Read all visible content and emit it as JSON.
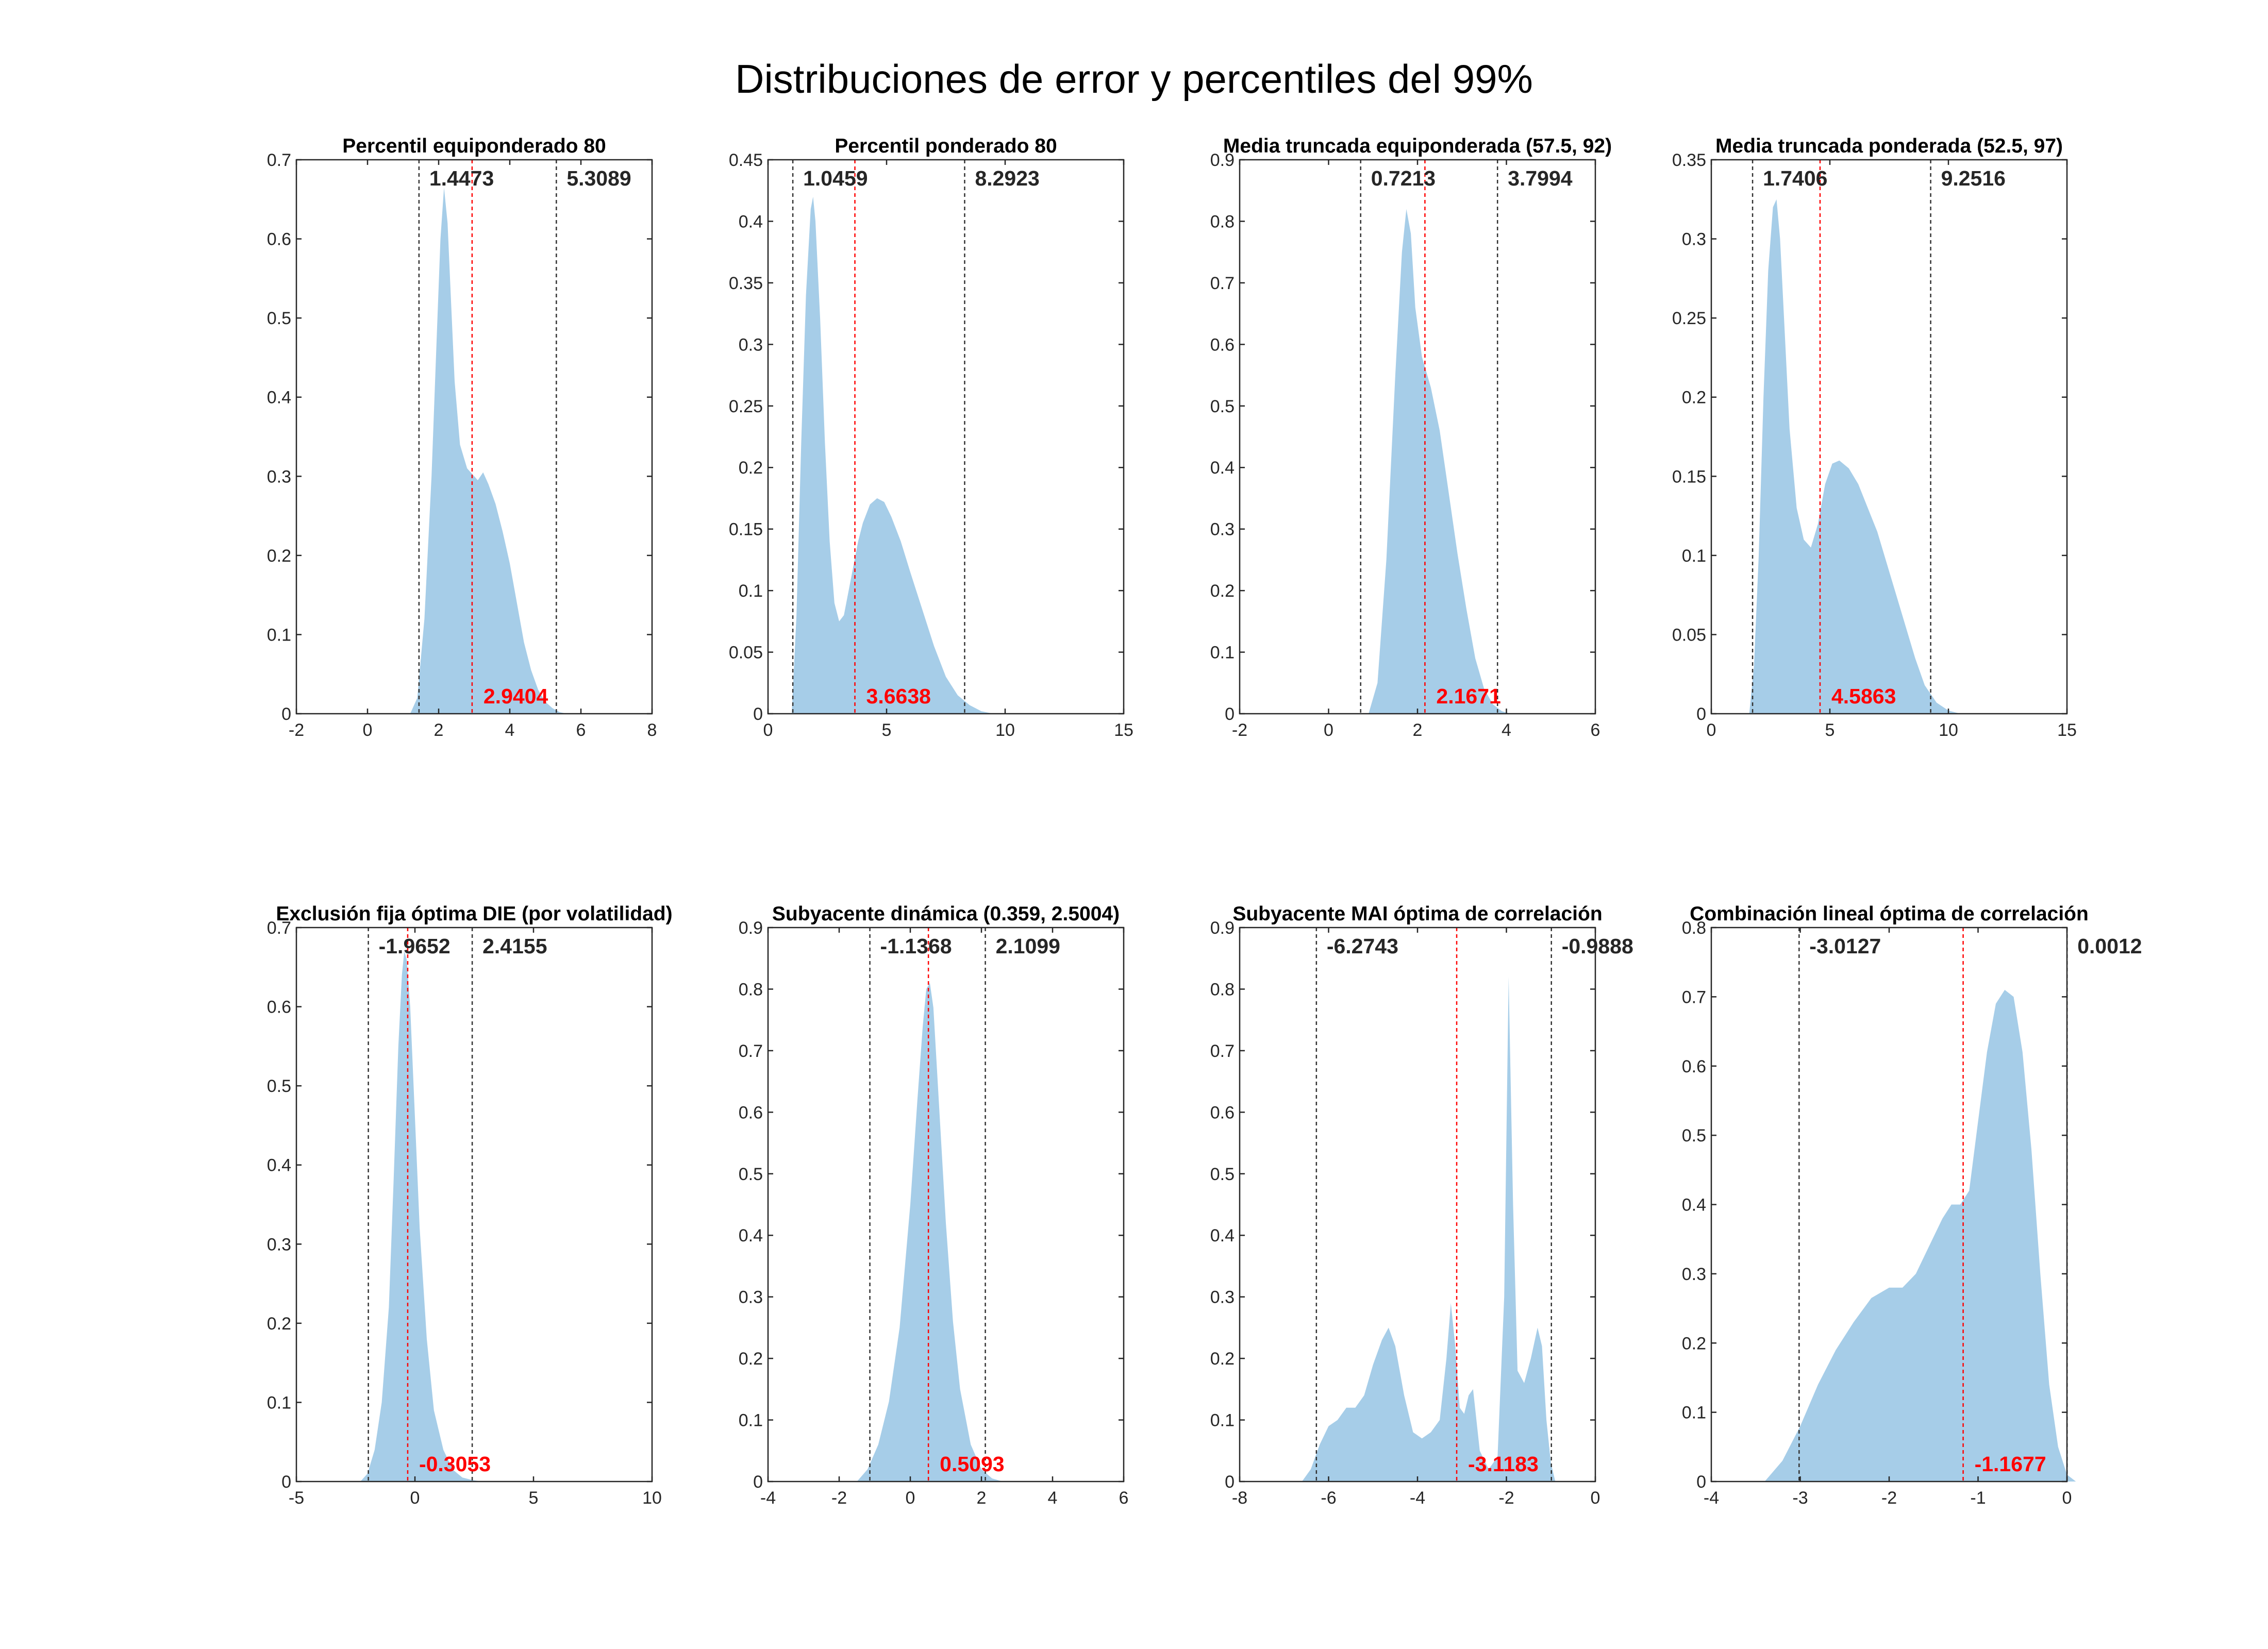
{
  "title": "Distribuciones de error y percentiles del 99%",
  "colors": {
    "fill": "#a6cde8",
    "median_line": "#ff0000",
    "bound_line": "#333333",
    "axis": "#262626"
  },
  "chart_data": [
    {
      "type": "area",
      "title": "Percentil equiponderado 80",
      "xlim": [
        -2,
        8
      ],
      "ylim": [
        0,
        0.7
      ],
      "xticks": [
        "-2",
        "0",
        "2",
        "4",
        "6",
        "8"
      ],
      "yticks": [
        "0",
        "0.1",
        "0.2",
        "0.3",
        "0.4",
        "0.5",
        "0.6",
        "0.7"
      ],
      "lower": 1.4473,
      "upper": 5.3089,
      "median": 2.9404,
      "lower_label": "1.4473",
      "upper_label": "5.3089",
      "median_label": "2.9404",
      "density": {
        "x": [
          1.2,
          1.4,
          1.6,
          1.8,
          1.95,
          2.05,
          2.15,
          2.25,
          2.35,
          2.45,
          2.6,
          2.8,
          3.0,
          3.1,
          3.25,
          3.4,
          3.6,
          3.8,
          4.0,
          4.2,
          4.4,
          4.6,
          4.8,
          5.0,
          5.2,
          5.4,
          5.6
        ],
        "y": [
          0.0,
          0.02,
          0.12,
          0.3,
          0.48,
          0.6,
          0.665,
          0.62,
          0.52,
          0.42,
          0.34,
          0.31,
          0.3,
          0.295,
          0.305,
          0.29,
          0.265,
          0.23,
          0.19,
          0.14,
          0.09,
          0.055,
          0.03,
          0.015,
          0.007,
          0.002,
          0.0
        ]
      }
    },
    {
      "type": "area",
      "title": "Percentil ponderado 80",
      "xlim": [
        0,
        15
      ],
      "ylim": [
        0,
        0.45
      ],
      "xticks": [
        "0",
        "5",
        "10",
        "15"
      ],
      "yticks": [
        "0",
        "0.05",
        "0.1",
        "0.15",
        "0.2",
        "0.25",
        "0.3",
        "0.35",
        "0.4",
        "0.45"
      ],
      "lower": 1.0459,
      "upper": 8.2923,
      "median": 3.6638,
      "lower_label": "1.0459",
      "upper_label": "8.2923",
      "median_label": "3.6638",
      "density": {
        "x": [
          1.0,
          1.2,
          1.4,
          1.6,
          1.8,
          1.9,
          2.0,
          2.2,
          2.4,
          2.6,
          2.8,
          3.0,
          3.2,
          3.5,
          3.8,
          4.0,
          4.3,
          4.6,
          4.9,
          5.2,
          5.6,
          6.0,
          6.5,
          7.0,
          7.5,
          8.0,
          8.5,
          9.0,
          9.5
        ],
        "y": [
          0.0,
          0.08,
          0.22,
          0.34,
          0.41,
          0.42,
          0.4,
          0.32,
          0.22,
          0.14,
          0.09,
          0.075,
          0.08,
          0.11,
          0.14,
          0.155,
          0.17,
          0.175,
          0.172,
          0.16,
          0.14,
          0.115,
          0.085,
          0.055,
          0.03,
          0.015,
          0.007,
          0.002,
          0.0
        ]
      }
    },
    {
      "type": "area",
      "title": "Media truncada equiponderada (57.5, 92)",
      "xlim": [
        -2,
        6
      ],
      "ylim": [
        0,
        0.9
      ],
      "xticks": [
        "-2",
        "0",
        "2",
        "4",
        "6"
      ],
      "yticks": [
        "0",
        "0.1",
        "0.2",
        "0.3",
        "0.4",
        "0.5",
        "0.6",
        "0.7",
        "0.8",
        "0.9"
      ],
      "lower": 0.7213,
      "upper": 3.7994,
      "median": 2.1671,
      "lower_label": "0.7213",
      "upper_label": "3.7994",
      "median_label": "2.1671",
      "density": {
        "x": [
          0.9,
          1.1,
          1.3,
          1.5,
          1.65,
          1.75,
          1.85,
          1.95,
          2.1,
          2.3,
          2.5,
          2.7,
          2.9,
          3.1,
          3.3,
          3.5,
          3.7,
          3.9,
          4.1
        ],
        "y": [
          0.0,
          0.05,
          0.25,
          0.55,
          0.75,
          0.82,
          0.78,
          0.66,
          0.58,
          0.53,
          0.46,
          0.36,
          0.26,
          0.17,
          0.09,
          0.04,
          0.015,
          0.004,
          0.0
        ]
      }
    },
    {
      "type": "area",
      "title": "Media truncada ponderada (52.5, 97)",
      "xlim": [
        0,
        15
      ],
      "ylim": [
        0,
        0.35
      ],
      "xticks": [
        "0",
        "5",
        "10",
        "15"
      ],
      "yticks": [
        "0",
        "0.05",
        "0.1",
        "0.15",
        "0.2",
        "0.25",
        "0.3",
        "0.35"
      ],
      "lower": 1.7406,
      "upper": 9.2516,
      "median": 4.5863,
      "lower_label": "1.7406",
      "upper_label": "9.2516",
      "median_label": "4.5863",
      "density": {
        "x": [
          1.6,
          1.8,
          2.0,
          2.2,
          2.4,
          2.6,
          2.75,
          2.9,
          3.1,
          3.3,
          3.6,
          3.9,
          4.2,
          4.5,
          4.8,
          5.1,
          5.4,
          5.8,
          6.2,
          6.6,
          7.0,
          7.4,
          7.8,
          8.2,
          8.6,
          9.0,
          9.5,
          10.0,
          10.5
        ],
        "y": [
          0.0,
          0.03,
          0.1,
          0.2,
          0.28,
          0.32,
          0.325,
          0.3,
          0.24,
          0.18,
          0.13,
          0.11,
          0.105,
          0.12,
          0.145,
          0.158,
          0.16,
          0.155,
          0.145,
          0.13,
          0.115,
          0.095,
          0.075,
          0.055,
          0.035,
          0.018,
          0.007,
          0.002,
          0.0
        ]
      }
    },
    {
      "type": "area",
      "title": "Exclusión fija óptima DIE (por volatilidad)",
      "xlim": [
        -5,
        10
      ],
      "ylim": [
        0,
        0.7
      ],
      "xticks": [
        "-5",
        "0",
        "5",
        "10"
      ],
      "yticks": [
        "0",
        "0.1",
        "0.2",
        "0.3",
        "0.4",
        "0.5",
        "0.6",
        "0.7"
      ],
      "lower": -1.9652,
      "upper": 2.4155,
      "median": -0.3053,
      "lower_label": "-1.9652",
      "upper_label": "2.4155",
      "median_label": "-0.3053",
      "density": {
        "x": [
          -2.3,
          -2.0,
          -1.7,
          -1.4,
          -1.1,
          -0.9,
          -0.7,
          -0.55,
          -0.45,
          -0.35,
          -0.2,
          0.0,
          0.2,
          0.5,
          0.8,
          1.2,
          1.6,
          2.0,
          2.4,
          2.8
        ],
        "y": [
          0.0,
          0.01,
          0.04,
          0.1,
          0.22,
          0.38,
          0.55,
          0.64,
          0.67,
          0.66,
          0.6,
          0.46,
          0.32,
          0.18,
          0.09,
          0.04,
          0.015,
          0.005,
          0.002,
          0.0
        ]
      }
    },
    {
      "type": "area",
      "title": "Subyacente dinámica (0.359, 2.5004)",
      "xlim": [
        -4,
        6
      ],
      "ylim": [
        0,
        0.9
      ],
      "xticks": [
        "-4",
        "-2",
        "0",
        "2",
        "4",
        "6"
      ],
      "yticks": [
        "0",
        "0.1",
        "0.2",
        "0.3",
        "0.4",
        "0.5",
        "0.6",
        "0.7",
        "0.8",
        "0.9"
      ],
      "lower": -1.1368,
      "upper": 2.1099,
      "median": 0.5093,
      "lower_label": "-1.1368",
      "upper_label": "2.1099",
      "median_label": "0.5093",
      "density": {
        "x": [
          -1.5,
          -1.2,
          -0.9,
          -0.6,
          -0.3,
          0.0,
          0.2,
          0.35,
          0.45,
          0.55,
          0.65,
          0.8,
          1.0,
          1.2,
          1.4,
          1.7,
          2.0,
          2.3,
          2.6
        ],
        "y": [
          0.0,
          0.02,
          0.06,
          0.13,
          0.25,
          0.45,
          0.62,
          0.74,
          0.8,
          0.81,
          0.77,
          0.62,
          0.42,
          0.26,
          0.15,
          0.06,
          0.02,
          0.005,
          0.0
        ]
      }
    },
    {
      "type": "area",
      "title": "Subyacente MAI óptima de correlación",
      "xlim": [
        -8,
        0
      ],
      "ylim": [
        0,
        0.9
      ],
      "xticks": [
        "-8",
        "-6",
        "-4",
        "-2",
        "0"
      ],
      "yticks": [
        "0",
        "0.1",
        "0.2",
        "0.3",
        "0.4",
        "0.5",
        "0.6",
        "0.7",
        "0.8",
        "0.9"
      ],
      "lower": -6.2743,
      "upper": -0.9888,
      "median": -3.1183,
      "lower_label": "-6.2743",
      "upper_label": "-0.9888",
      "median_label": "-3.1183",
      "density": {
        "x": [
          -6.6,
          -6.4,
          -6.2,
          -6.0,
          -5.8,
          -5.6,
          -5.4,
          -5.2,
          -5.0,
          -4.8,
          -4.65,
          -4.5,
          -4.3,
          -4.1,
          -3.9,
          -3.7,
          -3.5,
          -3.35,
          -3.25,
          -3.15,
          -3.05,
          -2.95,
          -2.85,
          -2.75,
          -2.6,
          -2.4,
          -2.2,
          -2.05,
          -1.95,
          -1.85,
          -1.75,
          -1.6,
          -1.45,
          -1.3,
          -1.2,
          -1.1,
          -1.0,
          -0.9
        ],
        "y": [
          0.0,
          0.02,
          0.06,
          0.09,
          0.1,
          0.12,
          0.12,
          0.14,
          0.19,
          0.23,
          0.25,
          0.22,
          0.14,
          0.08,
          0.07,
          0.08,
          0.1,
          0.2,
          0.29,
          0.22,
          0.12,
          0.11,
          0.14,
          0.15,
          0.05,
          0.02,
          0.04,
          0.3,
          0.82,
          0.45,
          0.18,
          0.16,
          0.2,
          0.25,
          0.22,
          0.1,
          0.03,
          0.0
        ]
      }
    },
    {
      "type": "area",
      "title": "Combinación lineal óptima de correlación",
      "xlim": [
        -4,
        0
      ],
      "ylim": [
        0,
        0.8
      ],
      "xticks": [
        "-4",
        "-3",
        "-2",
        "-1",
        "0"
      ],
      "yticks": [
        "0",
        "0.1",
        "0.2",
        "0.3",
        "0.4",
        "0.5",
        "0.6",
        "0.7",
        "0.8"
      ],
      "lower": -3.0127,
      "upper": 0.0012,
      "median": -1.1677,
      "lower_label": "-3.0127",
      "upper_label": "0.0012",
      "median_label": "-1.1677",
      "density": {
        "x": [
          -3.4,
          -3.2,
          -3.0,
          -2.8,
          -2.6,
          -2.4,
          -2.2,
          -2.0,
          -1.85,
          -1.7,
          -1.55,
          -1.4,
          -1.3,
          -1.2,
          -1.1,
          -1.0,
          -0.9,
          -0.8,
          -0.7,
          -0.6,
          -0.5,
          -0.4,
          -0.3,
          -0.2,
          -0.1,
          0.0,
          0.1
        ],
        "y": [
          0.0,
          0.03,
          0.08,
          0.14,
          0.19,
          0.23,
          0.265,
          0.28,
          0.28,
          0.3,
          0.34,
          0.38,
          0.4,
          0.4,
          0.42,
          0.52,
          0.62,
          0.69,
          0.71,
          0.7,
          0.62,
          0.48,
          0.3,
          0.14,
          0.05,
          0.01,
          0.0
        ]
      }
    }
  ]
}
